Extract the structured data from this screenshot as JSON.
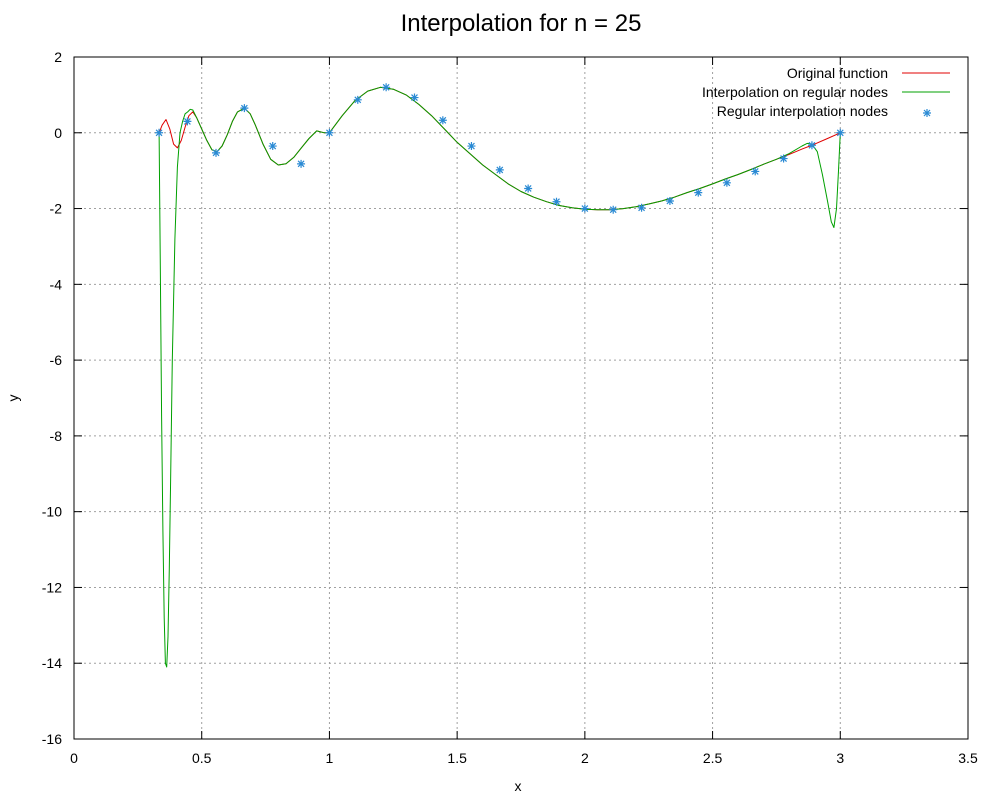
{
  "chart_data": {
    "type": "line",
    "title": "Interpolation for n = 25",
    "xlabel": "x",
    "ylabel": "y",
    "xlim": [
      0,
      3.5
    ],
    "ylim": [
      -16,
      2
    ],
    "xticks": [
      0,
      0.5,
      1,
      1.5,
      2,
      2.5,
      3,
      3.5
    ],
    "xtick_labels": [
      "0",
      "0.5",
      "1",
      "1.5",
      "2",
      "2.5",
      "3",
      "3.5"
    ],
    "yticks": [
      2,
      0,
      -2,
      -4,
      -6,
      -8,
      -10,
      -12,
      -14,
      -16
    ],
    "ytick_labels": [
      "2",
      "0",
      "-2",
      "-4",
      "-6",
      "-8",
      "-10",
      "-12",
      "-14",
      "-16"
    ],
    "grid": true,
    "legend_position": "top-right",
    "series": [
      {
        "name": "Original function",
        "style": "line",
        "color": "#e00000",
        "x": [
          0.333,
          0.345,
          0.36,
          0.375,
          0.39,
          0.405,
          0.42,
          0.435,
          0.45,
          0.465,
          0.48,
          0.5,
          0.52,
          0.54,
          0.56,
          0.58,
          0.6,
          0.62,
          0.64,
          0.667,
          0.69,
          0.71,
          0.74,
          0.77,
          0.8,
          0.83,
          0.86,
          0.89,
          0.92,
          0.95,
          0.98,
          1.0,
          1.05,
          1.1,
          1.15,
          1.2,
          1.25,
          1.3,
          1.35,
          1.4,
          1.45,
          1.5,
          1.55,
          1.6,
          1.65,
          1.7,
          1.75,
          1.8,
          1.85,
          1.9,
          1.95,
          2.0,
          2.05,
          2.1,
          2.15,
          2.2,
          2.25,
          2.3,
          2.35,
          2.4,
          2.45,
          2.5,
          2.55,
          2.6,
          2.65,
          2.7,
          2.75,
          2.8,
          2.85,
          2.9,
          2.95,
          3.0
        ],
        "y": [
          0.0,
          0.2,
          0.35,
          0.1,
          -0.3,
          -0.4,
          -0.2,
          0.15,
          0.45,
          0.55,
          0.4,
          0.1,
          -0.2,
          -0.45,
          -0.5,
          -0.35,
          -0.05,
          0.3,
          0.55,
          0.65,
          0.5,
          0.2,
          -0.3,
          -0.7,
          -0.85,
          -0.82,
          -0.65,
          -0.4,
          -0.15,
          0.05,
          0.0,
          0.0,
          0.45,
          0.85,
          1.1,
          1.2,
          1.15,
          1.0,
          0.75,
          0.45,
          0.1,
          -0.25,
          -0.55,
          -0.85,
          -1.1,
          -1.35,
          -1.55,
          -1.7,
          -1.82,
          -1.92,
          -1.98,
          -2.02,
          -2.03,
          -2.03,
          -2.0,
          -1.95,
          -1.88,
          -1.8,
          -1.7,
          -1.58,
          -1.47,
          -1.35,
          -1.22,
          -1.1,
          -0.97,
          -0.83,
          -0.7,
          -0.57,
          -0.43,
          -0.3,
          -0.15,
          0.0
        ]
      },
      {
        "name": "Interpolation on regular nodes",
        "style": "line",
        "color": "#00a000",
        "x": [
          0.333,
          0.338,
          0.343,
          0.348,
          0.353,
          0.358,
          0.363,
          0.368,
          0.373,
          0.378,
          0.385,
          0.395,
          0.405,
          0.415,
          0.425,
          0.435,
          0.445,
          0.455,
          0.465,
          0.48,
          0.5,
          0.52,
          0.54,
          0.56,
          0.58,
          0.6,
          0.62,
          0.64,
          0.667,
          0.69,
          0.71,
          0.74,
          0.77,
          0.8,
          0.83,
          0.86,
          0.89,
          0.92,
          0.95,
          0.98,
          1.0,
          1.05,
          1.1,
          1.15,
          1.2,
          1.25,
          1.3,
          1.35,
          1.4,
          1.45,
          1.5,
          1.55,
          1.6,
          1.65,
          1.7,
          1.75,
          1.8,
          1.85,
          1.9,
          1.95,
          2.0,
          2.05,
          2.1,
          2.15,
          2.2,
          2.25,
          2.3,
          2.35,
          2.4,
          2.45,
          2.5,
          2.55,
          2.6,
          2.65,
          2.7,
          2.75,
          2.8,
          2.85,
          2.87,
          2.889,
          2.91,
          2.93,
          2.95,
          2.965,
          2.975,
          2.985,
          2.993,
          3.0
        ],
        "y": [
          0.0,
          -3.5,
          -7.5,
          -10.5,
          -12.8,
          -14.0,
          -14.1,
          -13.3,
          -11.5,
          -9.2,
          -6.0,
          -2.8,
          -0.9,
          0.0,
          0.3,
          0.5,
          0.55,
          0.62,
          0.6,
          0.4,
          0.1,
          -0.2,
          -0.45,
          -0.5,
          -0.35,
          -0.05,
          0.3,
          0.55,
          0.65,
          0.5,
          0.2,
          -0.3,
          -0.7,
          -0.85,
          -0.82,
          -0.65,
          -0.4,
          -0.15,
          0.05,
          0.0,
          0.0,
          0.45,
          0.85,
          1.1,
          1.2,
          1.15,
          1.0,
          0.75,
          0.45,
          0.1,
          -0.25,
          -0.55,
          -0.85,
          -1.1,
          -1.35,
          -1.55,
          -1.7,
          -1.82,
          -1.92,
          -1.98,
          -2.02,
          -2.03,
          -2.03,
          -2.0,
          -1.95,
          -1.88,
          -1.8,
          -1.7,
          -1.58,
          -1.47,
          -1.35,
          -1.22,
          -1.1,
          -0.97,
          -0.83,
          -0.7,
          -0.55,
          -0.35,
          -0.28,
          -0.3,
          -0.5,
          -1.1,
          -1.8,
          -2.35,
          -2.5,
          -2.0,
          -1.0,
          0.0
        ]
      },
      {
        "name": "Regular interpolation nodes",
        "style": "points",
        "marker": "*",
        "color": "#2a8ad4",
        "x": [
          0.333,
          0.444,
          0.556,
          0.667,
          0.778,
          0.889,
          1.0,
          1.111,
          1.222,
          1.333,
          1.444,
          1.556,
          1.667,
          1.778,
          1.889,
          2.0,
          2.111,
          2.222,
          2.333,
          2.444,
          2.556,
          2.667,
          2.778,
          2.889,
          3.0
        ],
        "y": [
          0.0,
          0.3,
          -0.53,
          0.65,
          -0.35,
          -0.82,
          0.0,
          0.87,
          1.2,
          0.93,
          0.33,
          -0.35,
          -0.98,
          -1.47,
          -1.82,
          -2.0,
          -2.03,
          -1.98,
          -1.8,
          -1.58,
          -1.32,
          -1.02,
          -0.68,
          -0.33,
          0.0
        ]
      }
    ]
  }
}
